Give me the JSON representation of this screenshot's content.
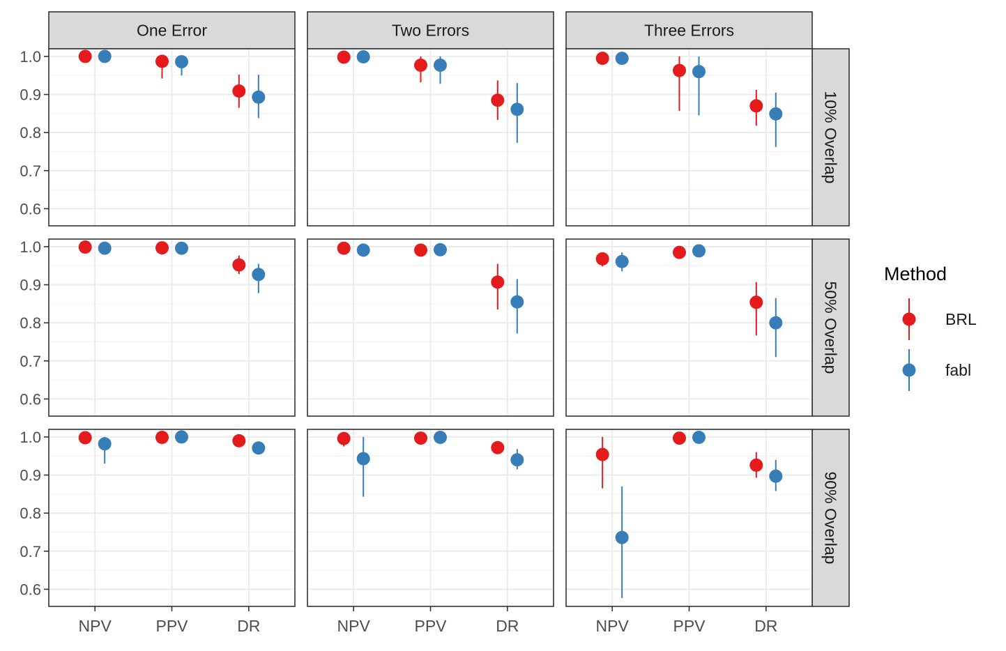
{
  "chart_data": {
    "type": "scatter",
    "subtype": "faceted point-range (point with vertical error bars)",
    "facet_columns": [
      "One Error",
      "Two Errors",
      "Three Errors"
    ],
    "facet_rows": [
      "10% Overlap",
      "50% Overlap",
      "90% Overlap"
    ],
    "categories": [
      "NPV",
      "PPV",
      "DR"
    ],
    "ylim": [
      0.555,
      1.02
    ],
    "yticks": [
      0.6,
      0.7,
      0.8,
      0.9,
      1.0
    ],
    "ytick_labels": [
      "0.6",
      "0.7",
      "0.8",
      "0.9",
      "1.0"
    ],
    "grid": true,
    "legend": {
      "title": "Method",
      "position": "right",
      "entries": [
        {
          "label": "BRL",
          "color": "#E41A1C"
        },
        {
          "label": "fabl",
          "color": "#377EB8"
        }
      ]
    },
    "series": [
      {
        "name": "BRL",
        "color": "#E41A1C",
        "panels": [
          [
            [
              {
                "y": 1.0,
                "lo": 1.0,
                "hi": 1.0
              },
              {
                "y": 0.987,
                "lo": 0.942,
                "hi": 1.0
              },
              {
                "y": 0.909,
                "lo": 0.865,
                "hi": 0.952
              }
            ],
            [
              {
                "y": 0.998,
                "lo": 0.99,
                "hi": 1.0
              },
              {
                "y": 0.977,
                "lo": 0.932,
                "hi": 1.0
              },
              {
                "y": 0.885,
                "lo": 0.833,
                "hi": 0.937
              }
            ],
            [
              {
                "y": 0.995,
                "lo": 0.99,
                "hi": 1.0
              },
              {
                "y": 0.963,
                "lo": 0.857,
                "hi": 1.0
              },
              {
                "y": 0.87,
                "lo": 0.818,
                "hi": 0.912
              }
            ]
          ],
          [
            [
              {
                "y": 0.999,
                "lo": 0.99,
                "hi": 1.0
              },
              {
                "y": 0.997,
                "lo": 0.99,
                "hi": 1.0
              },
              {
                "y": 0.952,
                "lo": 0.928,
                "hi": 0.977
              }
            ],
            [
              {
                "y": 0.996,
                "lo": 0.99,
                "hi": 1.0
              },
              {
                "y": 0.991,
                "lo": 0.985,
                "hi": 1.0
              },
              {
                "y": 0.907,
                "lo": 0.835,
                "hi": 0.955
              }
            ],
            [
              {
                "y": 0.968,
                "lo": 0.948,
                "hi": 0.985
              },
              {
                "y": 0.985,
                "lo": 0.978,
                "hi": 0.993
              },
              {
                "y": 0.854,
                "lo": 0.767,
                "hi": 0.907
              }
            ]
          ],
          [
            [
              {
                "y": 0.998,
                "lo": 0.99,
                "hi": 1.0
              },
              {
                "y": 0.999,
                "lo": 0.995,
                "hi": 1.0
              },
              {
                "y": 0.99,
                "lo": 0.98,
                "hi": 0.995
              }
            ],
            [
              {
                "y": 0.996,
                "lo": 0.975,
                "hi": 1.0
              },
              {
                "y": 0.997,
                "lo": 0.99,
                "hi": 1.0
              },
              {
                "y": 0.972,
                "lo": 0.962,
                "hi": 0.982
              }
            ],
            [
              {
                "y": 0.954,
                "lo": 0.865,
                "hi": 1.0
              },
              {
                "y": 0.997,
                "lo": 0.99,
                "hi": 1.0
              },
              {
                "y": 0.926,
                "lo": 0.893,
                "hi": 0.96
              }
            ]
          ]
        ]
      },
      {
        "name": "fabl",
        "color": "#377EB8",
        "panels": [
          [
            [
              {
                "y": 1.0,
                "lo": 1.0,
                "hi": 1.0
              },
              {
                "y": 0.986,
                "lo": 0.95,
                "hi": 1.0
              },
              {
                "y": 0.893,
                "lo": 0.838,
                "hi": 0.952
              }
            ],
            [
              {
                "y": 0.999,
                "lo": 0.995,
                "hi": 1.0
              },
              {
                "y": 0.977,
                "lo": 0.928,
                "hi": 1.0
              },
              {
                "y": 0.861,
                "lo": 0.773,
                "hi": 0.93
              }
            ],
            [
              {
                "y": 0.995,
                "lo": 0.99,
                "hi": 1.0
              },
              {
                "y": 0.96,
                "lo": 0.845,
                "hi": 1.0
              },
              {
                "y": 0.849,
                "lo": 0.762,
                "hi": 0.905
              }
            ]
          ],
          [
            [
              {
                "y": 0.996,
                "lo": 0.99,
                "hi": 1.0
              },
              {
                "y": 0.996,
                "lo": 0.99,
                "hi": 1.0
              },
              {
                "y": 0.927,
                "lo": 0.878,
                "hi": 0.955
              }
            ],
            [
              {
                "y": 0.991,
                "lo": 0.985,
                "hi": 0.997
              },
              {
                "y": 0.992,
                "lo": 0.985,
                "hi": 1.0
              },
              {
                "y": 0.855,
                "lo": 0.772,
                "hi": 0.915
              }
            ],
            [
              {
                "y": 0.961,
                "lo": 0.935,
                "hi": 0.985
              },
              {
                "y": 0.989,
                "lo": 0.98,
                "hi": 0.995
              },
              {
                "y": 0.8,
                "lo": 0.71,
                "hi": 0.865
              }
            ]
          ],
          [
            [
              {
                "y": 0.982,
                "lo": 0.93,
                "hi": 1.0
              },
              {
                "y": 1.0,
                "lo": 0.995,
                "hi": 1.0
              },
              {
                "y": 0.971,
                "lo": 0.962,
                "hi": 0.98
              }
            ],
            [
              {
                "y": 0.943,
                "lo": 0.843,
                "hi": 1.0
              },
              {
                "y": 0.999,
                "lo": 0.99,
                "hi": 1.0
              },
              {
                "y": 0.94,
                "lo": 0.915,
                "hi": 0.968
              }
            ],
            [
              {
                "y": 0.736,
                "lo": 0.577,
                "hi": 0.87
              },
              {
                "y": 0.999,
                "lo": 0.995,
                "hi": 1.0
              },
              {
                "y": 0.897,
                "lo": 0.858,
                "hi": 0.94
              }
            ]
          ]
        ]
      }
    ]
  }
}
